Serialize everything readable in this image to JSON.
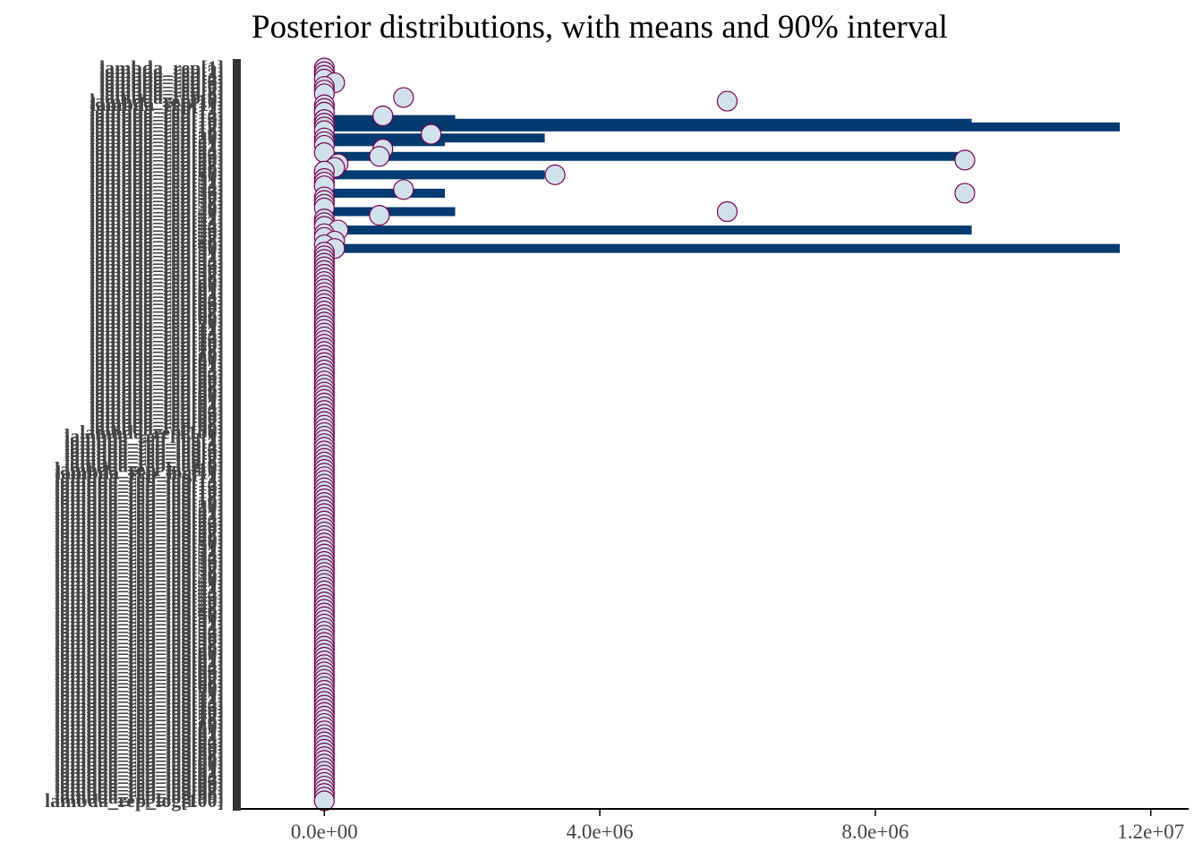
{
  "chart_data": {
    "type": "scatter",
    "title": "Posterior distributions, with means and 90% interval",
    "xlabel": "",
    "ylabel": "",
    "xlim": [
      -1200000,
      12550000
    ],
    "x_ticks": [
      {
        "value": 0,
        "label": "0.0e+00"
      },
      {
        "value": 4000000,
        "label": "4.0e+06"
      },
      {
        "value": 8000000,
        "label": "8.0e+06"
      },
      {
        "value": 12000000,
        "label": "1.2e+07"
      }
    ],
    "y_label_first": "lambda_rep[1]",
    "y_label_last": "lambda_rep_log[100]",
    "y_label_split": "lambda_rep_log[1]",
    "n_rep": 100,
    "n_rep_log": 100,
    "rep_means_notable": [
      {
        "index": 5,
        "value": 150000
      },
      {
        "index": 9,
        "value": 1150000
      },
      {
        "index": 10,
        "value": 5850000
      },
      {
        "index": 14,
        "value": 850000
      },
      {
        "index": 19,
        "value": 1550000
      },
      {
        "index": 23,
        "value": 850000
      },
      {
        "index": 25,
        "value": 800000
      },
      {
        "index": 26,
        "value": 9300000
      },
      {
        "index": 27,
        "value": 200000
      },
      {
        "index": 28,
        "value": 150000
      },
      {
        "index": 30,
        "value": 3350000
      },
      {
        "index": 34,
        "value": 1150000
      },
      {
        "index": 35,
        "value": 9300000
      },
      {
        "index": 40,
        "value": 5850000
      },
      {
        "index": 41,
        "value": 800000
      },
      {
        "index": 45,
        "value": 200000
      },
      {
        "index": 48,
        "value": 150000
      },
      {
        "index": 50,
        "value": 150000
      }
    ],
    "rep_means_default": 0,
    "rep_log_means_default": 0,
    "intervals_90": [
      {
        "index": 15,
        "low": 0,
        "high": 1900000
      },
      {
        "index": 16,
        "low": 0,
        "high": 9400000
      },
      {
        "index": 17,
        "low": 0,
        "high": 11550000
      },
      {
        "index": 20,
        "low": 0,
        "high": 3200000
      },
      {
        "index": 21,
        "low": 0,
        "high": 1750000
      },
      {
        "index": 25,
        "low": 0,
        "high": 9400000
      },
      {
        "index": 30,
        "low": 0,
        "high": 3200000
      },
      {
        "index": 35,
        "low": 0,
        "high": 1750000
      },
      {
        "index": 40,
        "low": 0,
        "high": 1900000
      },
      {
        "index": 45,
        "low": 0,
        "high": 9400000
      },
      {
        "index": 50,
        "low": 0,
        "high": 11550000
      }
    ],
    "colors": {
      "interval": "#033a70",
      "point_fill": "#d1e1ec",
      "point_stroke": "#7b0251",
      "axis": "#000000",
      "left_bar": "#333333",
      "tick_text": "#444444",
      "label_text": "#444444"
    }
  }
}
